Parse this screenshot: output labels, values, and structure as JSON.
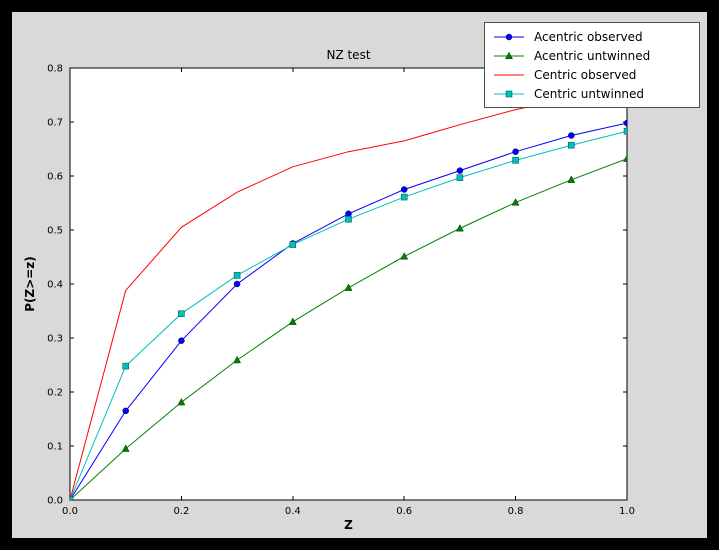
{
  "figure": {
    "window_bg": "#000000",
    "canvas_bg": "#d9d9d9",
    "plot_bg": "#ffffff",
    "axis_color": "#000000"
  },
  "chart_data": {
    "type": "line",
    "title": "NZ test",
    "xlabel": "Z",
    "ylabel": "P(Z>=z)",
    "xlim": [
      0.0,
      1.0
    ],
    "ylim": [
      0.0,
      0.8
    ],
    "xticks": [
      0.0,
      0.2,
      0.4,
      0.6,
      0.8,
      1.0
    ],
    "yticks": [
      0.0,
      0.1,
      0.2,
      0.3,
      0.4,
      0.5,
      0.6,
      0.7,
      0.8
    ],
    "grid": false,
    "legend_position": "upper right, overlapping top of axes",
    "x": [
      0.0,
      0.1,
      0.2,
      0.3,
      0.4,
      0.5,
      0.6,
      0.7,
      0.8,
      0.9,
      1.0
    ],
    "series": [
      {
        "name": "Acentric observed",
        "color": "#0000ff",
        "marker": "circle",
        "values": [
          0.0,
          0.165,
          0.295,
          0.4,
          0.475,
          0.53,
          0.575,
          0.61,
          0.645,
          0.675,
          0.698
        ]
      },
      {
        "name": "Acentric untwinned",
        "color": "#008000",
        "marker": "triangle",
        "values": [
          0.0,
          0.095,
          0.181,
          0.259,
          0.33,
          0.393,
          0.451,
          0.503,
          0.551,
          0.593,
          0.632
        ]
      },
      {
        "name": "Centric observed",
        "color": "#ff0000",
        "marker": "none",
        "values": [
          0.0,
          0.388,
          0.505,
          0.57,
          0.617,
          0.645,
          0.665,
          0.695,
          0.723,
          0.745,
          0.758
        ]
      },
      {
        "name": "Centric untwinned",
        "color": "#00bfbf",
        "marker": "square",
        "values": [
          0.0,
          0.248,
          0.345,
          0.416,
          0.473,
          0.52,
          0.561,
          0.597,
          0.629,
          0.657,
          0.683
        ]
      }
    ]
  }
}
